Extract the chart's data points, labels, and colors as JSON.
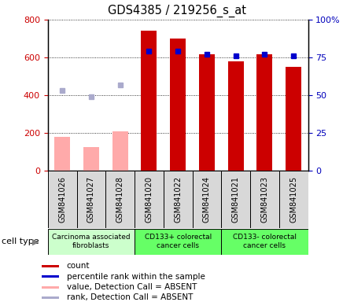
{
  "title": "GDS4385 / 219256_s_at",
  "samples": [
    "GSM841026",
    "GSM841027",
    "GSM841028",
    "GSM841020",
    "GSM841022",
    "GSM841024",
    "GSM841021",
    "GSM841023",
    "GSM841025"
  ],
  "count_values": [
    null,
    null,
    null,
    740,
    700,
    615,
    580,
    615,
    550
  ],
  "count_absent": [
    180,
    125,
    210,
    null,
    null,
    null,
    null,
    null,
    null
  ],
  "rank_values": [
    null,
    null,
    null,
    79,
    79,
    77,
    76,
    77,
    76
  ],
  "rank_absent": [
    53,
    49,
    57,
    null,
    null,
    null,
    null,
    null,
    null
  ],
  "groups": [
    {
      "label": "Carcinoma associated\nfibroblasts",
      "start": 0,
      "end": 3,
      "color": "#ccffcc"
    },
    {
      "label": "CD133+ colorectal\ncancer cells",
      "start": 3,
      "end": 6,
      "color": "#66ff66"
    },
    {
      "label": "CD133- colorectal\ncancer cells",
      "start": 6,
      "end": 9,
      "color": "#66ff66"
    }
  ],
  "ylim_left": [
    0,
    800
  ],
  "ylim_right": [
    0,
    100
  ],
  "yticks_left": [
    0,
    200,
    400,
    600,
    800
  ],
  "yticks_right": [
    0,
    25,
    50,
    75,
    100
  ],
  "ytick_labels_right": [
    "0",
    "25",
    "50",
    "75",
    "100%"
  ],
  "bar_width": 0.55,
  "count_color": "#cc0000",
  "count_absent_color": "#ffaaaa",
  "rank_color": "#0000cc",
  "rank_absent_color": "#aaaacc",
  "bg_color": "#ffffff",
  "cell_bg": "#d8d8d8",
  "legend_items": [
    {
      "color": "#cc0000",
      "label": "count"
    },
    {
      "color": "#0000cc",
      "label": "percentile rank within the sample"
    },
    {
      "color": "#ffaaaa",
      "label": "value, Detection Call = ABSENT"
    },
    {
      "color": "#aaaacc",
      "label": "rank, Detection Call = ABSENT"
    }
  ]
}
